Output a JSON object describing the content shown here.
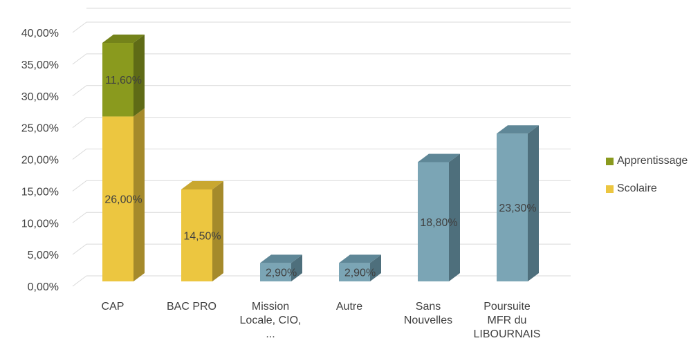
{
  "colors": {
    "apprentissage_front": "#8A9A1E",
    "apprentissage_top": "#74831A",
    "apprentissage_side": "#5F6B16",
    "scolaire_front": "#ECC640",
    "scolaire_top": "#C9A730",
    "scolaire_side": "#A58A2B",
    "other_front": "#7BA5B5",
    "other_top": "#5F8797",
    "other_side": "#4E6F7C",
    "grid": "#D9D9D9",
    "text": "#404040"
  },
  "legend": [
    {
      "name": "Apprentissage",
      "color": "#8A9A1E"
    },
    {
      "name": "Scolaire",
      "color": "#ECC640"
    }
  ],
  "chart_data": {
    "type": "bar",
    "stacked": true,
    "three_d": true,
    "categories": [
      [
        "CAP"
      ],
      [
        "BAC PRO"
      ],
      [
        "Mission",
        "Locale, CIO,",
        "..."
      ],
      [
        "Autre"
      ],
      [
        "Sans",
        "Nouvelles"
      ],
      [
        "Poursuite",
        "MFR du",
        "LIBOURNAIS"
      ]
    ],
    "series": [
      {
        "name": "Scolaire",
        "values": [
          26.0,
          14.5,
          null,
          null,
          null,
          null
        ]
      },
      {
        "name": "Apprentissage",
        "values": [
          11.6,
          null,
          null,
          null,
          null,
          null
        ]
      },
      {
        "name": "",
        "values": [
          null,
          null,
          2.9,
          2.9,
          18.8,
          23.3
        ]
      }
    ],
    "data_labels": [
      [
        "26,00%",
        "14,50%",
        "",
        "",
        "",
        ""
      ],
      [
        "11,60%",
        "",
        "",
        "",
        "",
        ""
      ],
      [
        "",
        "",
        "2,90%",
        "2,90%",
        "18,80%",
        "23,30%"
      ]
    ],
    "yticks": [
      "0,00%",
      "5,00%",
      "10,00%",
      "15,00%",
      "20,00%",
      "25,00%",
      "30,00%",
      "35,00%",
      "40,00%"
    ],
    "ylim": [
      0,
      40
    ],
    "grid": true,
    "legend_position": "right"
  }
}
